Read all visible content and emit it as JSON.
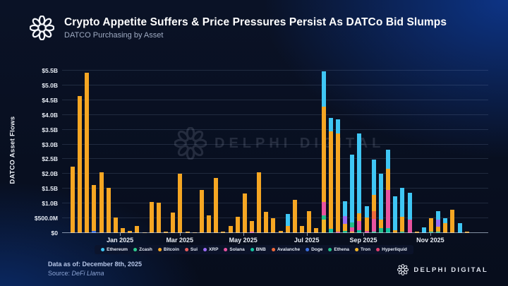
{
  "header": {
    "title": "Crypto Appetite Suffers & Price Pressures Persist As DATCo Bid Slumps",
    "subtitle": "DATCO Purchasing by Asset"
  },
  "watermark": {
    "text": "DELPHI DIGITAL"
  },
  "brand": {
    "wordmark": "DELPHI DIGITAL"
  },
  "footer": {
    "data_as_of": "Data as of: December 8th, 2025",
    "source_prefix": "Source: ",
    "source_name": "DeFi Llama"
  },
  "legend": {
    "items": [
      {
        "label": "Ethereum",
        "color": "#3fc6f4"
      },
      {
        "label": "Zcash",
        "color": "#2ecc8f"
      },
      {
        "label": "Bitcoin",
        "color": "#f5a623"
      },
      {
        "label": "Sui",
        "color": "#e85d5d"
      },
      {
        "label": "XRP",
        "color": "#9b6cf6"
      },
      {
        "label": "Solana",
        "color": "#e8539f"
      },
      {
        "label": "BNB",
        "color": "#14c4a2"
      },
      {
        "label": "Avalanche",
        "color": "#ef6a3a"
      },
      {
        "label": "Doge",
        "color": "#3b6fe0"
      },
      {
        "label": "Ethena",
        "color": "#22bd88"
      },
      {
        "label": "Tron",
        "color": "#f0b429"
      },
      {
        "label": "Hyperliquid",
        "color": "#e0416f"
      }
    ]
  },
  "chart_data": {
    "type": "bar",
    "stacked": true,
    "title": "DATCO Purchasing by Asset",
    "xlabel": "",
    "ylabel": "DATCO Asset Flows",
    "unit": "USD billions, weekly flows Dec 2024 - Dec 2025",
    "ylim": [
      0,
      5.5
    ],
    "grid": true,
    "legend_position": "bottom",
    "y_tick_labels": [
      "$0",
      "$500.0M",
      "$1.0B",
      "$1.5B",
      "$2.0B",
      "$2.5B",
      "$3.0B",
      "$3.5B",
      "$4.0B",
      "$4.5B",
      "$5.0B",
      "$5.5B"
    ],
    "y_tick_values": [
      0,
      0.5,
      1.0,
      1.5,
      2.0,
      2.5,
      3.0,
      3.5,
      4.0,
      4.5,
      5.0,
      5.5
    ],
    "x_ticks": [
      {
        "label": "Jan 2025",
        "pos": 0.136
      },
      {
        "label": "Mar 2025",
        "pos": 0.276
      },
      {
        "label": "May 2025",
        "pos": 0.425
      },
      {
        "label": "Jul 2025",
        "pos": 0.574
      },
      {
        "label": "Sep 2025",
        "pos": 0.707
      },
      {
        "label": "Nov 2025",
        "pos": 0.864
      }
    ],
    "bars": [
      {
        "segments": [
          [
            "Bitcoin",
            2.25
          ]
        ]
      },
      {
        "segments": [
          [
            "Bitcoin",
            4.63
          ]
        ]
      },
      {
        "segments": [
          [
            "Bitcoin",
            5.42
          ]
        ]
      },
      {
        "segments": [
          [
            "Doge",
            0.07
          ],
          [
            "Bitcoin",
            1.55
          ]
        ]
      },
      {
        "segments": [
          [
            "Bitcoin",
            2.05
          ]
        ]
      },
      {
        "segments": [
          [
            "Bitcoin",
            1.52
          ]
        ]
      },
      {
        "segments": [
          [
            "Bitcoin",
            0.52
          ]
        ]
      },
      {
        "segments": [
          [
            "Bitcoin",
            0.17
          ]
        ]
      },
      {
        "segments": [
          [
            "Bitcoin",
            0.07
          ]
        ]
      },
      {
        "segments": [
          [
            "Bitcoin",
            0.24
          ]
        ]
      },
      {
        "segments": [
          [
            "Bitcoin",
            0.03
          ]
        ]
      },
      {
        "segments": [
          [
            "Bitcoin",
            1.05
          ]
        ]
      },
      {
        "segments": [
          [
            "Bitcoin",
            1.03
          ]
        ]
      },
      {
        "segments": [
          [
            "Bitcoin",
            0.04
          ]
        ]
      },
      {
        "segments": [
          [
            "Bitcoin",
            0.69
          ]
        ]
      },
      {
        "segments": [
          [
            "Bitcoin",
            2.0
          ]
        ]
      },
      {
        "segments": [
          [
            "Bitcoin",
            0.04
          ]
        ]
      },
      {
        "segments": [
          [
            "Bitcoin",
            0.03
          ]
        ]
      },
      {
        "segments": [
          [
            "Bitcoin",
            1.47
          ]
        ]
      },
      {
        "segments": [
          [
            "Bitcoin",
            0.6
          ]
        ]
      },
      {
        "segments": [
          [
            "Bitcoin",
            1.87
          ]
        ]
      },
      {
        "segments": [
          [
            "Bitcoin",
            0.05
          ]
        ]
      },
      {
        "segments": [
          [
            "Bitcoin",
            0.25
          ]
        ]
      },
      {
        "segments": [
          [
            "Bitcoin",
            0.54
          ]
        ]
      },
      {
        "segments": [
          [
            "Bitcoin",
            1.35
          ]
        ]
      },
      {
        "segments": [
          [
            "Solana",
            0.05
          ],
          [
            "Bitcoin",
            0.35
          ]
        ]
      },
      {
        "segments": [
          [
            "Bitcoin",
            2.05
          ]
        ]
      },
      {
        "segments": [
          [
            "Bitcoin",
            0.72
          ]
        ]
      },
      {
        "segments": [
          [
            "Bitcoin",
            0.5
          ]
        ]
      },
      {
        "segments": [
          [
            "Bitcoin",
            0.08
          ]
        ]
      },
      {
        "segments": [
          [
            "Bitcoin",
            0.24
          ],
          [
            "Ethereum",
            0.41
          ]
        ]
      },
      {
        "segments": [
          [
            "Bitcoin",
            1.13
          ]
        ]
      },
      {
        "segments": [
          [
            "Bitcoin",
            0.24
          ]
        ]
      },
      {
        "segments": [
          [
            "Bitcoin",
            0.75
          ]
        ]
      },
      {
        "segments": [
          [
            "Bitcoin",
            0.17
          ]
        ]
      },
      {
        "segments": [
          [
            "Tron",
            0.45
          ],
          [
            "Ethena",
            0.15
          ],
          [
            "Solana",
            0.45
          ],
          [
            "Bitcoin",
            3.22
          ],
          [
            "Ethereum",
            1.2
          ]
        ]
      },
      {
        "segments": [
          [
            "BNB",
            0.15
          ],
          [
            "Bitcoin",
            3.3
          ],
          [
            "Ethereum",
            0.45
          ]
        ]
      },
      {
        "segments": [
          [
            "Solana",
            0.06
          ],
          [
            "Bitcoin",
            3.31
          ],
          [
            "Ethereum",
            0.48
          ]
        ]
      },
      {
        "segments": [
          [
            "Ethena",
            0.07
          ],
          [
            "Bitcoin",
            0.25
          ],
          [
            "XRP",
            0.26
          ],
          [
            "Ethereum",
            0.5
          ]
        ]
      },
      {
        "segments": [
          [
            "Bitcoin",
            0.06
          ],
          [
            "Solana",
            0.14
          ],
          [
            "Ethena",
            0.17
          ],
          [
            "Ethereum",
            2.28
          ]
        ]
      },
      {
        "segments": [
          [
            "BNB",
            0.1
          ],
          [
            "Solana",
            0.3
          ],
          [
            "Bitcoin",
            0.26
          ],
          [
            "Ethereum",
            2.71
          ]
        ]
      },
      {
        "segments": [
          [
            "Solana",
            0.08
          ],
          [
            "Bitcoin",
            0.44
          ],
          [
            "Ethereum",
            0.38
          ]
        ]
      },
      {
        "segments": [
          [
            "Zcash",
            0.06
          ],
          [
            "Solana",
            0.42
          ],
          [
            "Avalanche",
            0.26
          ],
          [
            "Bitcoin",
            0.55
          ],
          [
            "Ethereum",
            1.2
          ]
        ]
      },
      {
        "segments": [
          [
            "Ethena",
            0.16
          ],
          [
            "Bitcoin",
            0.3
          ],
          [
            "Ethereum",
            1.54
          ]
        ]
      },
      {
        "segments": [
          [
            "BNB",
            0.17
          ],
          [
            "Solana",
            1.3
          ],
          [
            "Bitcoin",
            0.7
          ],
          [
            "Ethereum",
            0.65
          ]
        ]
      },
      {
        "segments": [
          [
            "Bitcoin",
            0.1
          ],
          [
            "Ethereum",
            1.14
          ]
        ]
      },
      {
        "segments": [
          [
            "Ethena",
            0.06
          ],
          [
            "Bitcoin",
            0.5
          ],
          [
            "Ethereum",
            0.97
          ]
        ]
      },
      {
        "segments": [
          [
            "Solana",
            0.45
          ],
          [
            "Ethereum",
            0.92
          ]
        ]
      },
      {
        "segments": [
          [
            "Bitcoin",
            0.05
          ]
        ]
      },
      {
        "segments": [
          [
            "Ethereum",
            0.2
          ]
        ]
      },
      {
        "segments": [
          [
            "Ethena",
            0.04
          ],
          [
            "Bitcoin",
            0.46
          ]
        ]
      },
      {
        "segments": [
          [
            "Ethena",
            0.05
          ],
          [
            "Bitcoin",
            0.17
          ],
          [
            "XRP",
            0.24
          ],
          [
            "Ethereum",
            0.28
          ]
        ]
      },
      {
        "segments": [
          [
            "Bitcoin",
            0.34
          ],
          [
            "Ethereum",
            0.16
          ]
        ]
      },
      {
        "segments": [
          [
            "Bitcoin",
            0.78
          ]
        ]
      },
      {
        "segments": [
          [
            "Ethereum",
            0.34
          ]
        ]
      },
      {
        "segments": [
          [
            "Bitcoin",
            0.04
          ]
        ]
      }
    ]
  }
}
